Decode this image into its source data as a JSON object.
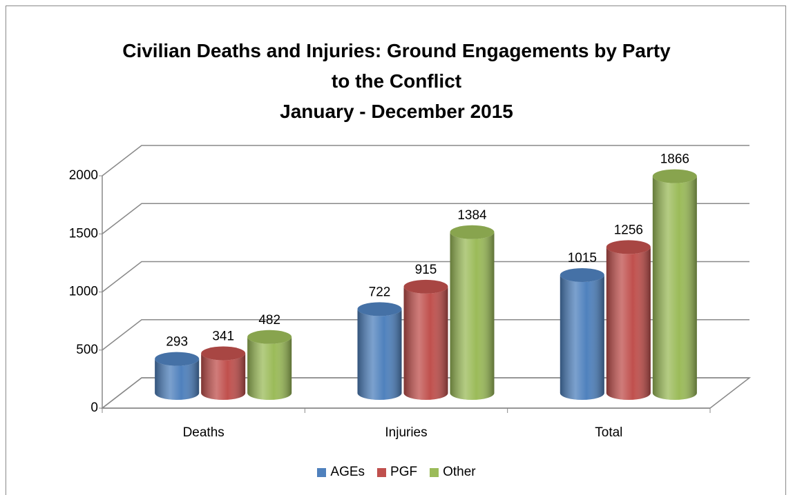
{
  "chart_data": {
    "type": "bar3d",
    "title": "Civilian Deaths and Injuries: Ground Engagements by Party to the Conflict",
    "subtitle": "January - December 2015",
    "categories": [
      "Deaths",
      "Injuries",
      "Total"
    ],
    "series": [
      {
        "name": "AGEs",
        "color": "#4f81bd",
        "values": [
          293,
          722,
          1015
        ]
      },
      {
        "name": "PGF",
        "color": "#c0504d",
        "values": [
          341,
          915,
          1256
        ]
      },
      {
        "name": "Other",
        "color": "#9bbb59",
        "values": [
          482,
          1384,
          1866
        ]
      }
    ],
    "ylim": [
      0,
      2000
    ],
    "yticks": [
      0,
      500,
      1000,
      1500,
      2000
    ],
    "grid": true,
    "legend": "bottom"
  }
}
